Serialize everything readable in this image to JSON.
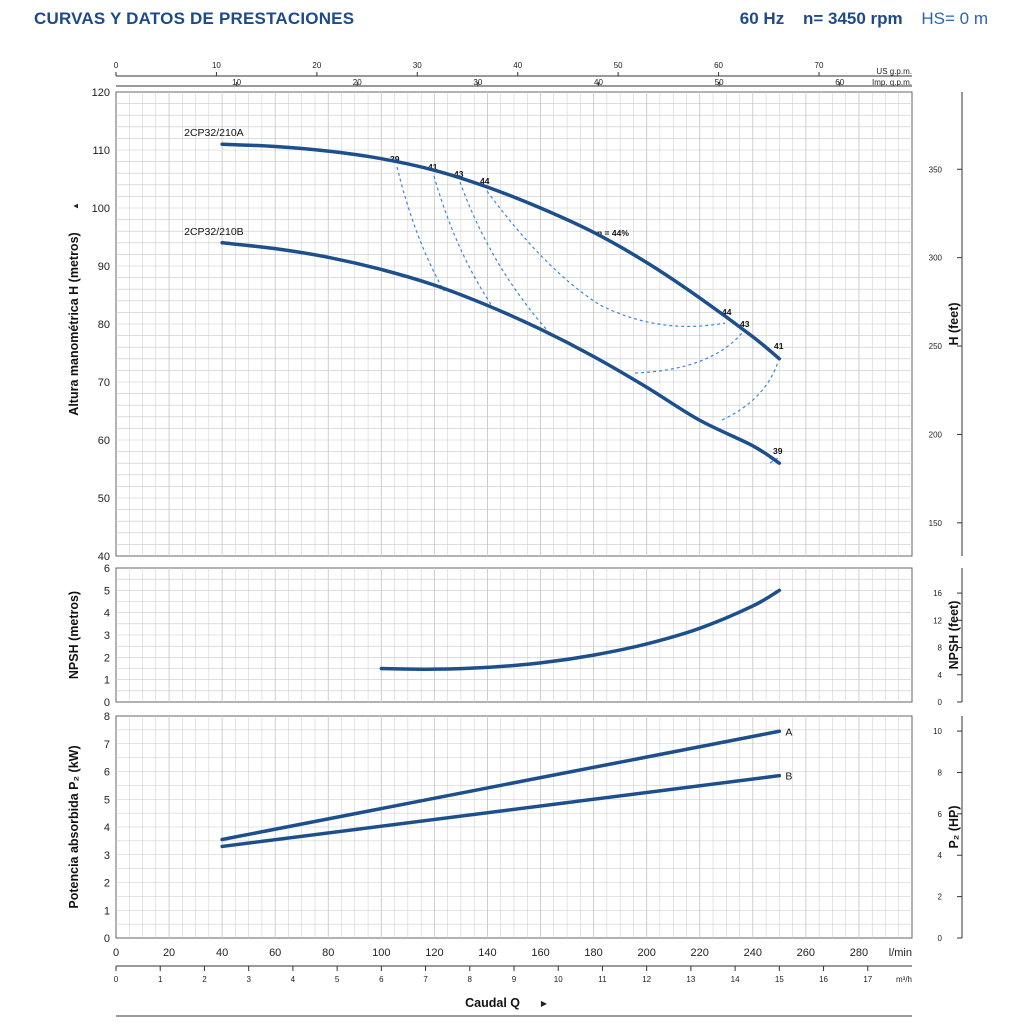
{
  "header": {
    "title": "CURVAS Y DATOS DE PRESTACIONES",
    "frequency": "60 Hz",
    "speed": "n= 3450 rpm",
    "hs": "HS= 0 m"
  },
  "colors": {
    "title": "#1f4a8a",
    "curve": "#1d4f8c",
    "efficiency": "#3f86d6",
    "grid": "#c9c9c9"
  },
  "chart_data": [
    {
      "type": "line",
      "ylabel": "Altura manométrica H  (metros)",
      "ylabel_arrow": "▲",
      "ylabel_right": "H  (feet)",
      "ylim": [
        40,
        120
      ],
      "yticks": [
        "40",
        "50",
        "60",
        "70",
        "80",
        "90",
        "100",
        "110",
        "120"
      ],
      "yticks_right": [
        "150",
        "200",
        "250",
        "300",
        "350"
      ],
      "top_axis_us": {
        "label": "US g.p.m.",
        "ticks": [
          "0",
          "10",
          "20",
          "30",
          "40",
          "50",
          "60",
          "70"
        ]
      },
      "top_axis_imp": {
        "label": "Imp. g.p.m.",
        "ticks": [
          "10",
          "20",
          "30",
          "40",
          "50",
          "60"
        ]
      },
      "grid": true,
      "series": [
        {
          "name": "2CP32/210A",
          "x": [
            40,
            60,
            80,
            100,
            120,
            140,
            160,
            180,
            200,
            220,
            240,
            250
          ],
          "y": [
            111,
            110.6,
            109.8,
            108.5,
            106.5,
            103.6,
            100,
            95.8,
            90.6,
            84.5,
            77.8,
            74
          ]
        },
        {
          "name": "2CP32/210B",
          "x": [
            40,
            60,
            80,
            100,
            120,
            140,
            160,
            180,
            200,
            220,
            240,
            250
          ],
          "y": [
            94,
            93,
            91.5,
            89.4,
            86.7,
            83.2,
            79.1,
            74.4,
            69.1,
            63.4,
            59,
            56
          ]
        }
      ],
      "efficiency_labels": [
        "39",
        "41",
        "43",
        "44",
        "η = 44%",
        "44",
        "43",
        "41",
        "39"
      ]
    },
    {
      "type": "line",
      "ylabel": "NPSH  (metros)",
      "ylabel_right": "NPSH  (feet)",
      "ylim": [
        0,
        6
      ],
      "yticks": [
        "0",
        "1",
        "2",
        "3",
        "4",
        "5",
        "6"
      ],
      "yticks_right": [
        "0",
        "4",
        "8",
        "12",
        "16"
      ],
      "grid": true,
      "series": [
        {
          "name": "NPSH",
          "x": [
            100,
            120,
            140,
            160,
            180,
            200,
            220,
            240,
            250
          ],
          "y": [
            1.5,
            1.47,
            1.55,
            1.75,
            2.1,
            2.6,
            3.3,
            4.3,
            5.0
          ]
        }
      ]
    },
    {
      "type": "line",
      "ylabel": "Potencia absorbida P₂  (kW)",
      "ylabel_right": "P₂  (HP)",
      "ylim": [
        0,
        8
      ],
      "yticks": [
        "0",
        "1",
        "2",
        "3",
        "4",
        "5",
        "6",
        "7",
        "8"
      ],
      "yticks_right": [
        "0",
        "2",
        "4",
        "6",
        "8",
        "10"
      ],
      "xlabel": "Caudal Q",
      "xlabel_arrow": "▶",
      "xlim": [
        0,
        300
      ],
      "xticks": [
        "0",
        "20",
        "40",
        "60",
        "80",
        "100",
        "120",
        "140",
        "160",
        "180",
        "200",
        "220",
        "240",
        "260",
        "280"
      ],
      "x_unit": "l/min",
      "x2_ticks": [
        "0",
        "1",
        "2",
        "3",
        "4",
        "5",
        "6",
        "7",
        "8",
        "9",
        "10",
        "11",
        "12",
        "13",
        "14",
        "15",
        "16",
        "17"
      ],
      "x2_unit": "m³/h",
      "grid": true,
      "series": [
        {
          "name": "A",
          "x": [
            40,
            250
          ],
          "y": [
            3.55,
            7.45
          ]
        },
        {
          "name": "B",
          "x": [
            40,
            250
          ],
          "y": [
            3.3,
            5.85
          ]
        }
      ]
    }
  ]
}
